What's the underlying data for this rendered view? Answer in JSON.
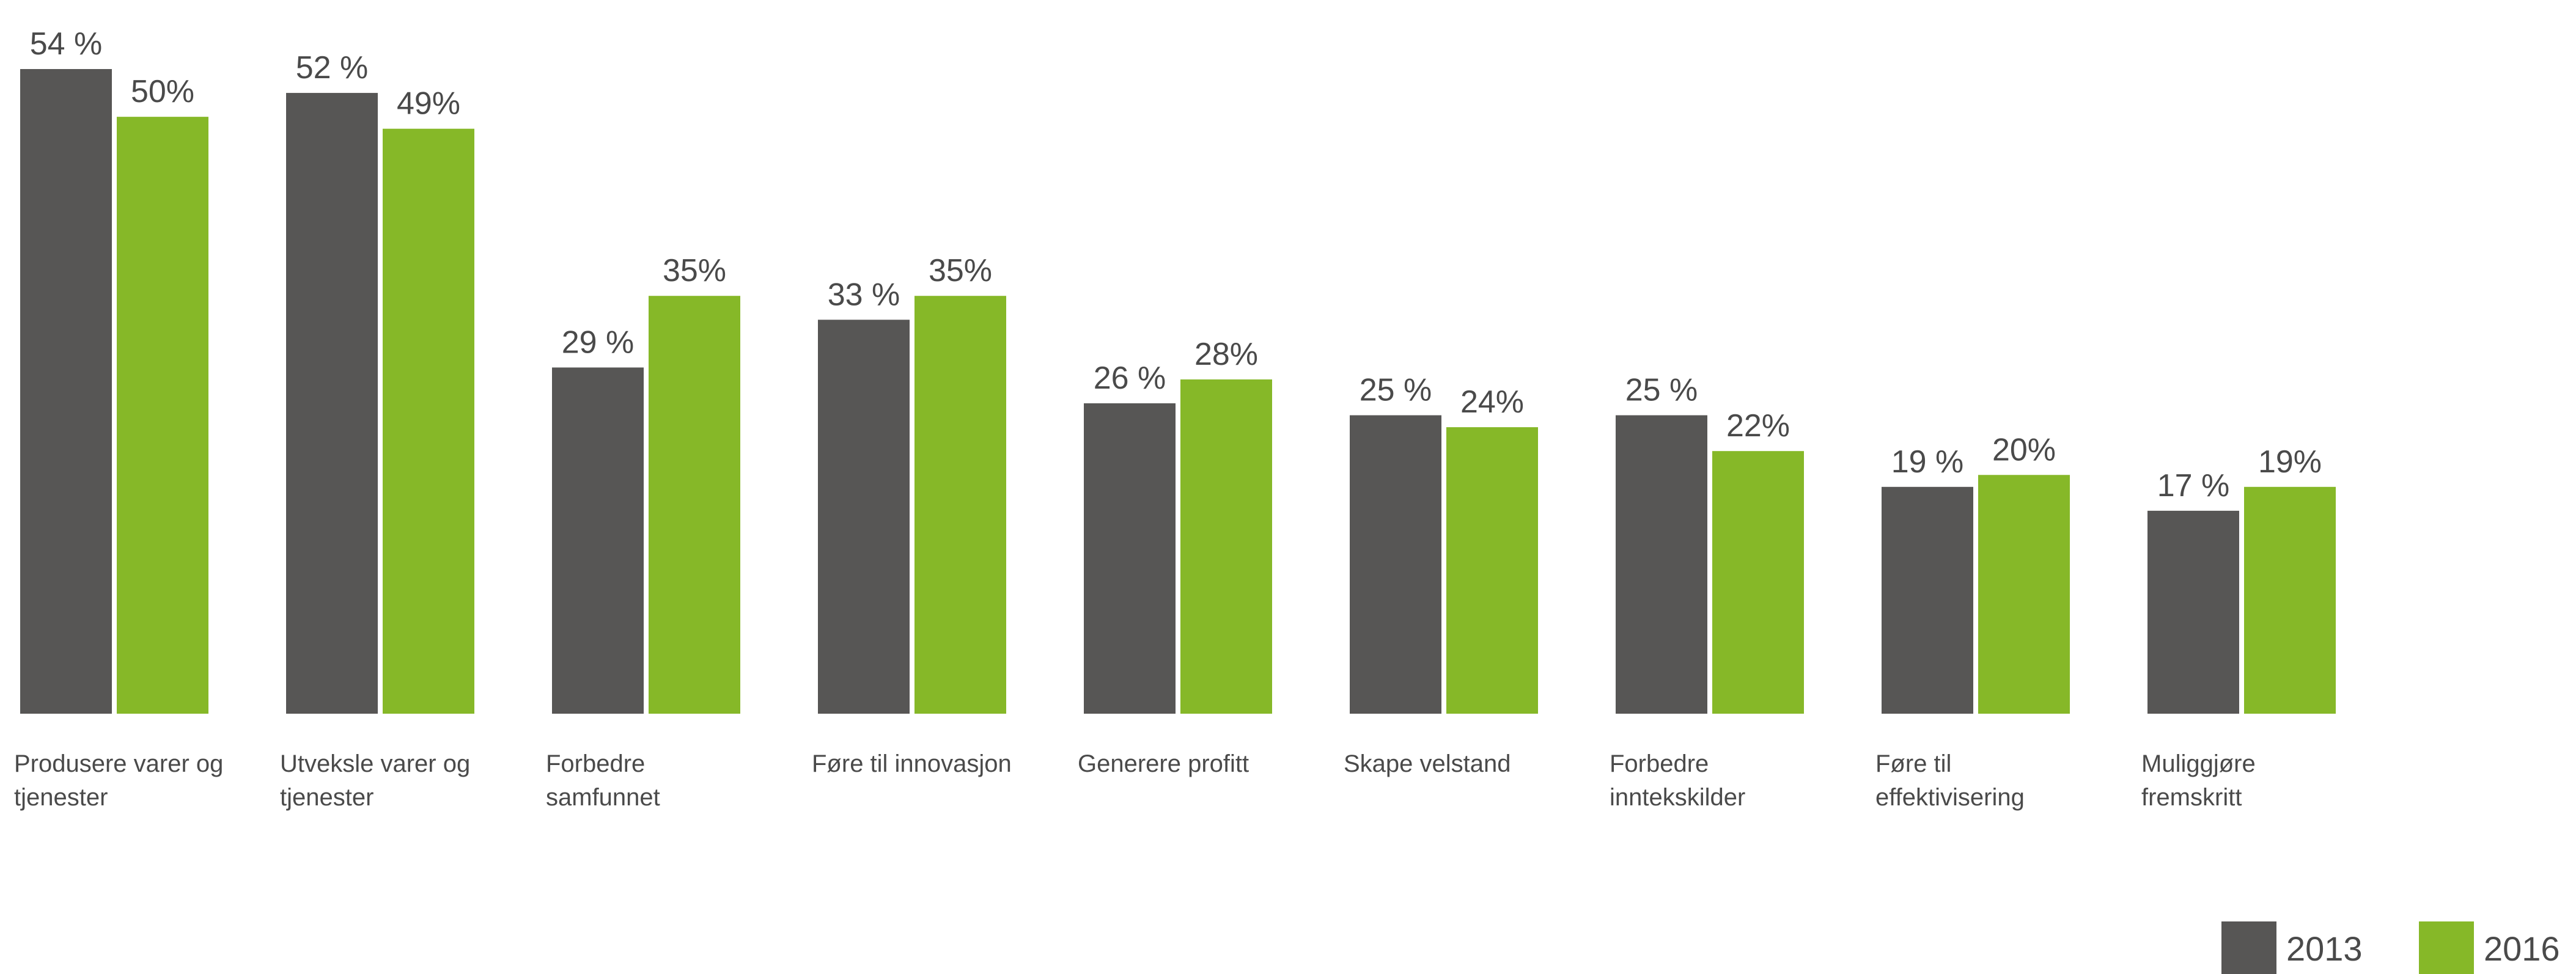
{
  "chart_data": {
    "type": "bar",
    "title": "",
    "xlabel": "",
    "ylabel": "",
    "ylim": [
      0,
      54
    ],
    "grid": false,
    "legend_position": "bottom-right",
    "categories": [
      "Produsere varer og tjenester",
      "Utveksle varer og tjenester",
      "Forbedre samfunnet",
      "Føre til innovasjon",
      "Generere profitt",
      "Skape velstand",
      "Forbedre inntekskilder",
      "Føre til effektivisering",
      "Muliggjøre fremskritt"
    ],
    "category_label_lines": [
      [
        "Produsere varer og",
        "tjenester"
      ],
      [
        "Utveksle varer og",
        "tjenester"
      ],
      [
        "Forbedre",
        "samfunnet"
      ],
      [
        "Føre til innovasjon"
      ],
      [
        "Generere profitt"
      ],
      [
        "Skape velstand"
      ],
      [
        "Forbedre",
        "inntekskilder"
      ],
      [
        "Føre til",
        "effektivisering"
      ],
      [
        "Muliggjøre",
        "fremskritt"
      ]
    ],
    "series": [
      {
        "name": "2013",
        "color": "#575655",
        "values": [
          54,
          52,
          29,
          33,
          26,
          25,
          25,
          19,
          17
        ],
        "value_labels": [
          "54 %",
          "52 %",
          "29 %",
          "33 %",
          "26 %",
          "25 %",
          "25 %",
          "19 %",
          "17 %"
        ]
      },
      {
        "name": "2016",
        "color": "#86b828",
        "values": [
          50,
          49,
          35,
          35,
          28,
          24,
          22,
          20,
          19
        ],
        "value_labels": [
          "50%",
          "49%",
          "35%",
          "35%",
          "28%",
          "24%",
          "22%",
          "20%",
          "19%"
        ]
      }
    ]
  }
}
